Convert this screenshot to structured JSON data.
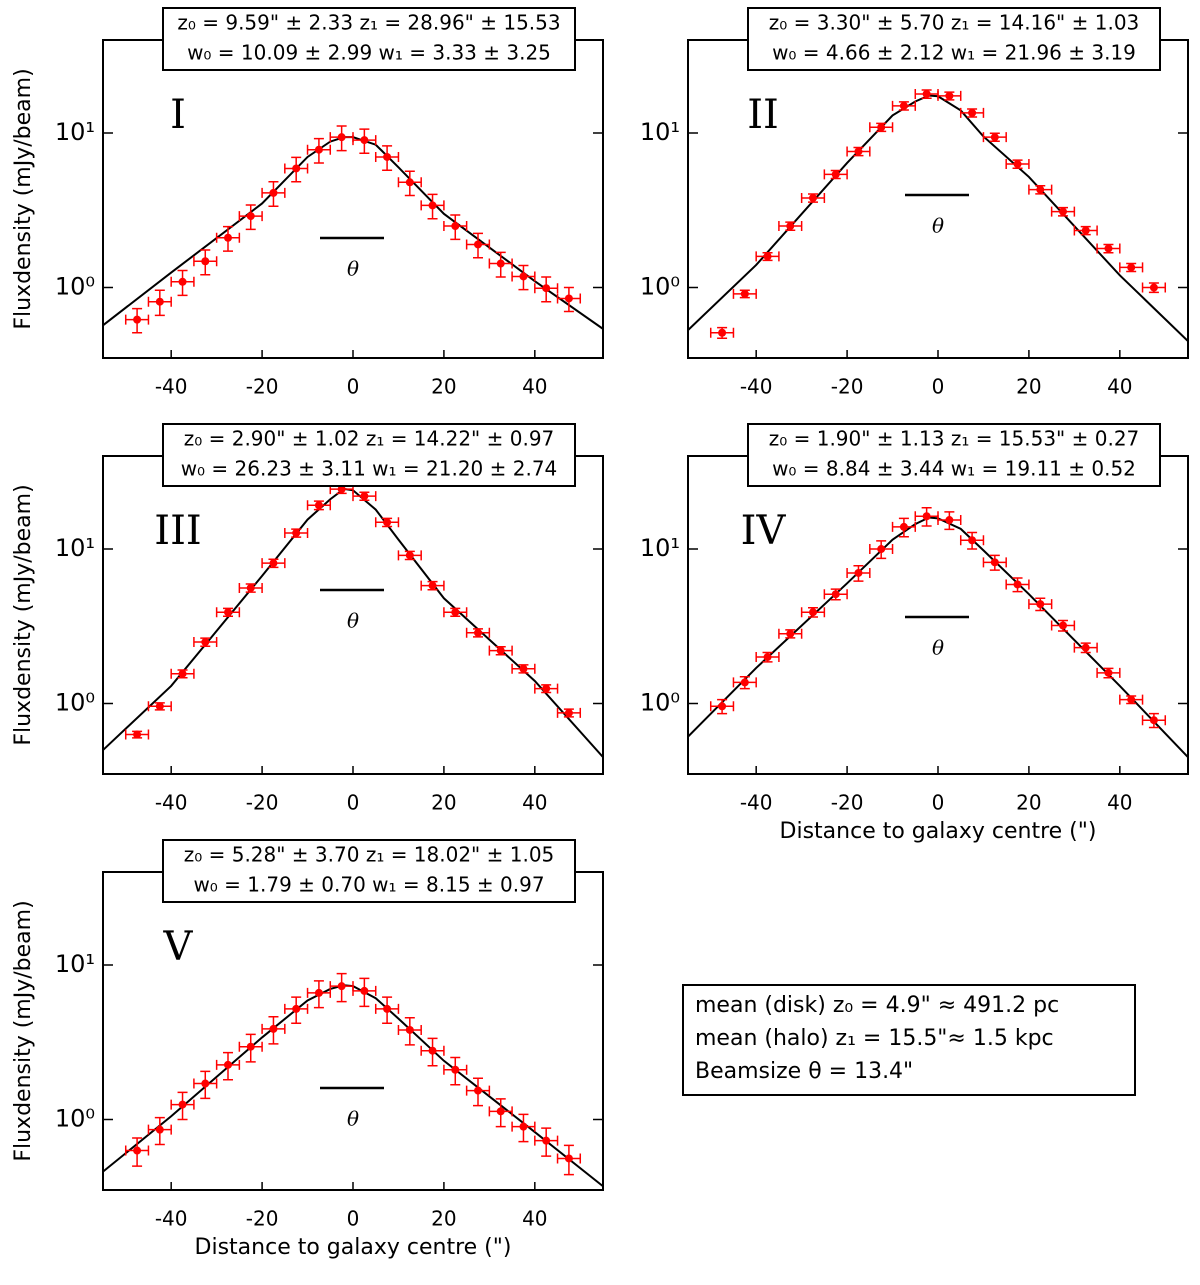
{
  "chart_data": [
    {
      "type": "scatter",
      "label": "I",
      "annotation": [
        "z₀ = 9.59\" ± 2.33 z₁ = 28.96\" ± 15.53",
        "w₀ = 10.09 ± 2.99 w₁ = 3.33 ± 3.25"
      ],
      "beam_label": "θ",
      "ylabel": "Fluxdensity (mJy/beam)",
      "x": [
        -47.5,
        -42.5,
        -37.5,
        -32.5,
        -27.5,
        -22.5,
        -17.5,
        -12.5,
        -7.5,
        -2.5,
        2.5,
        7.5,
        12.5,
        17.5,
        22.5,
        27.5,
        32.5,
        37.5,
        42.5,
        47.5
      ],
      "values": [
        0.62,
        0.81,
        1.09,
        1.48,
        2.1,
        2.9,
        4.1,
        5.9,
        7.8,
        9.4,
        9.0,
        7.0,
        4.8,
        3.4,
        2.5,
        1.9,
        1.43,
        1.18,
        0.99,
        0.85
      ],
      "errors": [
        0.11,
        0.15,
        0.2,
        0.27,
        0.38,
        0.52,
        0.74,
        1.06,
        1.4,
        1.7,
        1.6,
        1.26,
        0.86,
        0.61,
        0.45,
        0.34,
        0.26,
        0.21,
        0.18,
        0.15
      ],
      "xerr": 2.5,
      "fit": {
        "x": [
          -55,
          -40,
          -20,
          -10,
          -5,
          -2,
          0,
          5,
          10,
          20,
          40,
          55
        ],
        "values": [
          0.57,
          1.25,
          3.5,
          7.0,
          8.8,
          9.4,
          9.4,
          8.4,
          6.0,
          3.0,
          1.1,
          0.54
        ]
      },
      "color": "#ff0000",
      "fit_color": "#000000",
      "xlim": [
        -55,
        55
      ],
      "ylim": [
        0.35,
        40
      ],
      "log_y": true,
      "xticks": [
        -40,
        -20,
        0,
        20,
        40
      ],
      "yticks": [
        {
          "value": 1,
          "label": "10⁰"
        },
        {
          "value": 10,
          "label": "10¹"
        }
      ]
    },
    {
      "type": "scatter",
      "label": "II",
      "annotation": [
        "z₀ = 3.30\" ± 5.70 z₁ = 14.16\" ± 1.03",
        "w₀ = 4.66 ± 2.12 w₁ = 21.96 ± 3.19"
      ],
      "beam_label": "θ",
      "x": [
        -47.5,
        -42.5,
        -37.5,
        -32.5,
        -27.5,
        -22.5,
        -17.5,
        -12.5,
        -7.5,
        -2.5,
        2.5,
        7.5,
        12.5,
        17.5,
        22.5,
        27.5,
        32.5,
        37.5,
        42.5,
        47.5
      ],
      "values": [
        0.51,
        0.91,
        1.59,
        2.5,
        3.8,
        5.4,
        7.6,
        10.9,
        15.0,
        17.9,
        17.4,
        13.5,
        9.4,
        6.3,
        4.3,
        3.1,
        2.34,
        1.79,
        1.35,
        1.0
      ],
      "errors": [
        0.04,
        0.05,
        0.09,
        0.15,
        0.23,
        0.32,
        0.46,
        0.65,
        0.9,
        1.1,
        1.0,
        0.8,
        0.56,
        0.38,
        0.26,
        0.19,
        0.14,
        0.11,
        0.08,
        0.07
      ],
      "xerr": 2.5,
      "fit": {
        "x": [
          -55,
          -40,
          -20,
          -10,
          -5,
          -2,
          0,
          5,
          10,
          20,
          40,
          55
        ],
        "values": [
          0.53,
          1.4,
          6.4,
          13,
          16,
          17.5,
          17.3,
          14,
          9.5,
          5.2,
          1.2,
          0.45
        ]
      },
      "color": "#ff0000",
      "fit_color": "#000000",
      "xlim": [
        -55,
        55
      ],
      "ylim": [
        0.35,
        40
      ],
      "log_y": true,
      "xticks": [
        -40,
        -20,
        0,
        20,
        40
      ],
      "yticks": [
        {
          "value": 1,
          "label": "10⁰"
        },
        {
          "value": 10,
          "label": "10¹"
        }
      ]
    },
    {
      "type": "scatter",
      "label": "III",
      "annotation": [
        "z₀ = 2.90\" ± 1.02 z₁ = 14.22\" ± 0.97",
        "w₀ = 26.23 ± 3.11 w₁ = 21.20 ± 2.74"
      ],
      "beam_label": "θ",
      "ylabel": "Fluxdensity (mJy/beam)",
      "x": [
        -47.5,
        -42.5,
        -37.5,
        -32.5,
        -27.5,
        -22.5,
        -17.5,
        -12.5,
        -7.5,
        -2.5,
        2.5,
        7.5,
        12.5,
        17.5,
        22.5,
        27.5,
        32.5,
        37.5,
        42.5,
        47.5
      ],
      "values": [
        0.63,
        0.96,
        1.56,
        2.5,
        3.9,
        5.6,
        8.1,
        12.7,
        19.2,
        24.4,
        22.0,
        14.9,
        9.1,
        5.8,
        3.9,
        2.87,
        2.2,
        1.68,
        1.25,
        0.87
      ],
      "errors": [
        0.03,
        0.05,
        0.09,
        0.15,
        0.23,
        0.34,
        0.49,
        0.76,
        1.2,
        1.5,
        1.3,
        0.9,
        0.55,
        0.35,
        0.23,
        0.17,
        0.13,
        0.1,
        0.07,
        0.05
      ],
      "xerr": 2.5,
      "fit": {
        "x": [
          -55,
          -40,
          -20,
          -10,
          -5,
          -2,
          0,
          5,
          10,
          20,
          40,
          55
        ],
        "values": [
          0.5,
          1.3,
          6.7,
          15.5,
          21,
          24.5,
          24,
          18,
          11.5,
          4.8,
          1.4,
          0.45
        ]
      },
      "color": "#ff0000",
      "fit_color": "#000000",
      "xlim": [
        -55,
        55
      ],
      "ylim": [
        0.35,
        40
      ],
      "log_y": true,
      "xticks": [
        -40,
        -20,
        0,
        20,
        40
      ],
      "yticks": [
        {
          "value": 1,
          "label": "10⁰"
        },
        {
          "value": 10,
          "label": "10¹"
        }
      ]
    },
    {
      "type": "scatter",
      "label": "IV",
      "annotation": [
        "z₀ = 1.90\" ± 1.13 z₁ = 15.53\" ± 0.27",
        "w₀ = 8.84 ± 3.44 w₁ = 19.11 ± 0.52"
      ],
      "beam_label": "θ",
      "xlabel": "Distance to galaxy centre (\")",
      "x": [
        -47.5,
        -42.5,
        -37.5,
        -32.5,
        -27.5,
        -22.5,
        -17.5,
        -12.5,
        -7.5,
        -2.5,
        2.5,
        7.5,
        12.5,
        17.5,
        22.5,
        27.5,
        32.5,
        37.5,
        42.5,
        47.5
      ],
      "values": [
        0.96,
        1.37,
        2.0,
        2.83,
        3.9,
        5.1,
        7.0,
        10.0,
        13.9,
        16.3,
        15.4,
        11.4,
        8.2,
        5.9,
        4.4,
        3.2,
        2.3,
        1.58,
        1.06,
        0.78
      ],
      "errors": [
        0.1,
        0.12,
        0.14,
        0.17,
        0.27,
        0.4,
        0.8,
        1.3,
        1.9,
        2.2,
        2.0,
        1.4,
        0.9,
        0.6,
        0.4,
        0.25,
        0.16,
        0.11,
        0.06,
        0.08
      ],
      "xerr": 2.5,
      "fit": {
        "x": [
          -55,
          -40,
          -20,
          -10,
          -5,
          -2,
          0,
          5,
          10,
          20,
          40,
          55
        ],
        "values": [
          0.61,
          1.7,
          6,
          11.5,
          14.5,
          16,
          15.8,
          13.5,
          9.8,
          5.1,
          1.3,
          0.45
        ]
      },
      "color": "#ff0000",
      "fit_color": "#000000",
      "xlim": [
        -55,
        55
      ],
      "ylim": [
        0.35,
        40
      ],
      "log_y": true,
      "xticks": [
        -40,
        -20,
        0,
        20,
        40
      ],
      "yticks": [
        {
          "value": 1,
          "label": "10⁰"
        },
        {
          "value": 10,
          "label": "10¹"
        }
      ]
    },
    {
      "type": "scatter",
      "label": "V",
      "annotation": [
        "z₀ = 5.28\" ± 3.70 z₁ = 18.02\" ± 1.05",
        "w₀ = 1.79 ± 0.70 w₁ = 8.15 ± 0.97"
      ],
      "beam_label": "θ",
      "ylabel": "Fluxdensity (mJy/beam)",
      "xlabel": "Distance to galaxy centre (\")",
      "x": [
        -47.5,
        -42.5,
        -37.5,
        -32.5,
        -27.5,
        -22.5,
        -17.5,
        -12.5,
        -7.5,
        -2.5,
        2.5,
        7.5,
        12.5,
        17.5,
        22.5,
        27.5,
        32.5,
        37.5,
        42.5,
        47.5
      ],
      "values": [
        0.63,
        0.86,
        1.25,
        1.71,
        2.26,
        2.96,
        3.86,
        5.2,
        6.6,
        7.3,
        6.8,
        5.2,
        3.8,
        2.79,
        2.1,
        1.54,
        1.13,
        0.9,
        0.73,
        0.56
      ],
      "errors": [
        0.13,
        0.17,
        0.25,
        0.34,
        0.45,
        0.6,
        0.77,
        1.0,
        1.3,
        1.5,
        1.4,
        1.0,
        0.76,
        0.56,
        0.42,
        0.31,
        0.23,
        0.18,
        0.15,
        0.12
      ],
      "xerr": 2.5,
      "fit": {
        "x": [
          -55,
          -40,
          -20,
          -10,
          -5,
          -2,
          0,
          5,
          10,
          20,
          40,
          55
        ],
        "values": [
          0.46,
          1.05,
          3.4,
          5.9,
          7.0,
          7.4,
          7.3,
          6.1,
          4.5,
          2.4,
          0.83,
          0.37
        ]
      },
      "color": "#ff0000",
      "fit_color": "#000000",
      "xlim": [
        -55,
        55
      ],
      "ylim": [
        0.35,
        40
      ],
      "log_y": true,
      "xticks": [
        -40,
        -20,
        0,
        20,
        40
      ],
      "yticks": [
        {
          "value": 1,
          "label": "10⁰"
        },
        {
          "value": 10,
          "label": "10¹"
        }
      ]
    }
  ],
  "summary": [
    "mean (disk) z₀ = 4.9\" ≈ 491.2 pc",
    "mean (halo) z₁ = 15.5\"≈ 1.5 kpc",
    "Beamsize θ = 13.4\""
  ]
}
